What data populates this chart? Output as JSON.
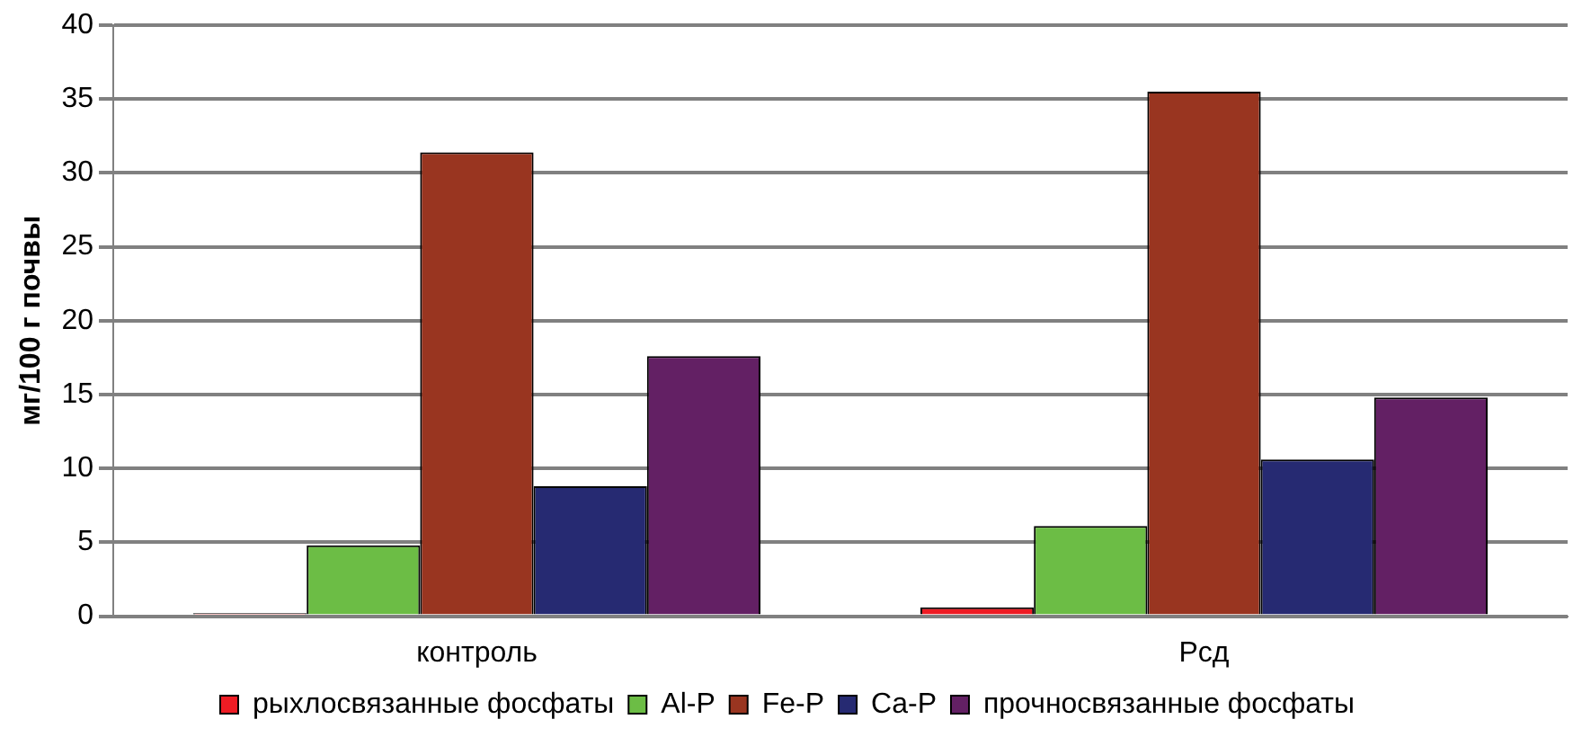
{
  "chart_data": {
    "type": "bar",
    "ylabel": "мг/100 г почвы",
    "categories": [
      "контроль",
      "Рсд"
    ],
    "series": [
      {
        "name": "рыхлосвязанные фосфаты",
        "color": "#ee1c24",
        "values": [
          0.2,
          0.6
        ]
      },
      {
        "name": "Al-P",
        "color": "#6cbd45",
        "values": [
          4.8,
          6.1
        ]
      },
      {
        "name": "Fe-P",
        "color": "#993520",
        "values": [
          31.4,
          35.5
        ]
      },
      {
        "name": "Ca-P",
        "color": "#262a72",
        "values": [
          8.8,
          10.6
        ]
      },
      {
        "name": "прочносвязанные фосфаты",
        "color": "#632064",
        "values": [
          17.6,
          14.8
        ]
      }
    ],
    "ylim": [
      0,
      40
    ],
    "yticks": [
      0,
      5,
      10,
      15,
      20,
      25,
      30,
      35,
      40
    ],
    "grid": "y",
    "legend": "bottom"
  }
}
